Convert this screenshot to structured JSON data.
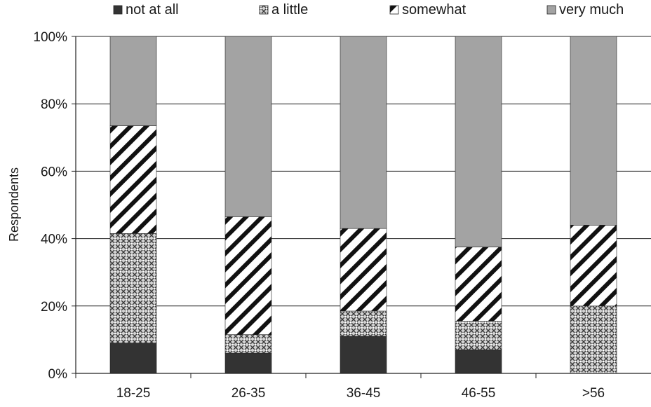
{
  "chart_data": {
    "type": "bar",
    "stacked": true,
    "categories": [
      "18-25",
      "26-35",
      "36-45",
      "46-55",
      ">56"
    ],
    "series": [
      {
        "name": "not at all",
        "values": [
          9,
          6,
          11,
          7,
          0
        ]
      },
      {
        "name": "a little",
        "values": [
          32.5,
          5.5,
          7.5,
          8.5,
          20
        ]
      },
      {
        "name": "somewhat",
        "values": [
          32,
          35,
          24.5,
          22,
          24
        ]
      },
      {
        "name": "very much",
        "values": [
          26.5,
          53.5,
          57,
          62.5,
          56
        ]
      }
    ],
    "ylabel": "Respondents",
    "xlabel": "",
    "ylim": [
      0,
      100
    ],
    "yticks": [
      "0%",
      "20%",
      "40%",
      "60%",
      "80%",
      "100%"
    ],
    "grid": true,
    "legend_position": "top",
    "colors": {
      "not at all": "#333333",
      "a little": "#bcbcbc",
      "somewhat": "#ffffff",
      "very much": "#a3a3a3"
    }
  }
}
